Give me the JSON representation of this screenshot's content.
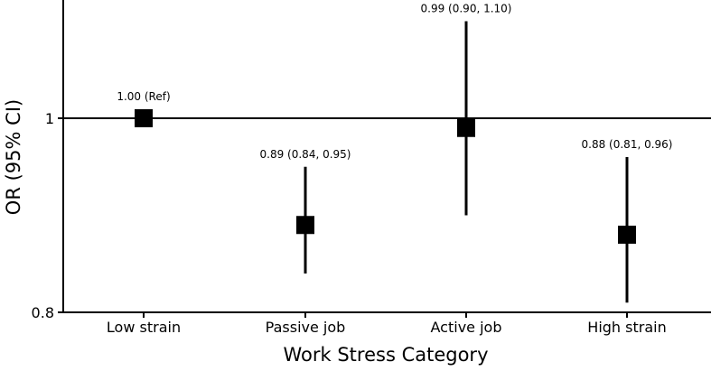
{
  "chart_data": {
    "type": "scatter",
    "title": "",
    "xlabel": "Work Stress Category",
    "ylabel": "OR (95% CI)",
    "categories": [
      "Low strain",
      "Passive job",
      "Active job",
      "High strain"
    ],
    "points": [
      {
        "category": "Low strain",
        "or": 1.0,
        "ci_low": 1.0,
        "ci_high": 1.0,
        "label": "1.00 (Ref)"
      },
      {
        "category": "Passive job",
        "or": 0.89,
        "ci_low": 0.84,
        "ci_high": 0.95,
        "label": "0.89 (0.84, 0.95)"
      },
      {
        "category": "Active job",
        "or": 0.99,
        "ci_low": 0.9,
        "ci_high": 1.1,
        "label": "0.99 (0.90, 1.10)"
      },
      {
        "category": "High strain",
        "or": 0.88,
        "ci_low": 0.81,
        "ci_high": 0.96,
        "label": "0.88 (0.81, 0.96)"
      }
    ],
    "yticks": [
      {
        "value": 0.8,
        "label": "0.8"
      },
      {
        "value": 1.0,
        "label": "1"
      }
    ],
    "ylim": [
      0.8,
      1.12
    ],
    "reference_line": 1.0,
    "grid": false,
    "legend": "none",
    "marker": "square",
    "color": "#000000"
  }
}
